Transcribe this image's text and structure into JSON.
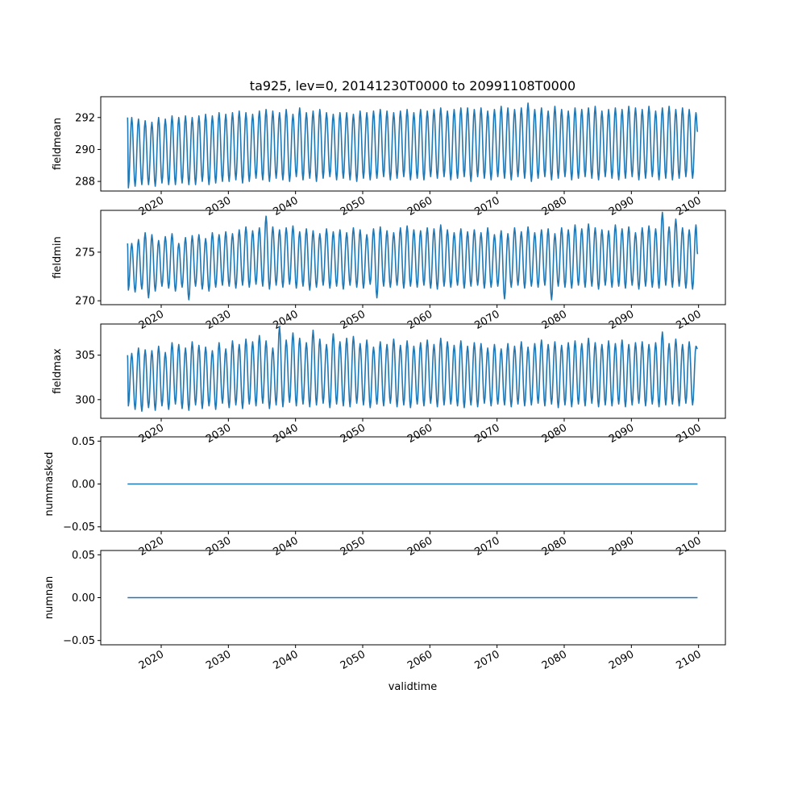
{
  "figure": {
    "title": "ta925, lev=0, 20141230T0000 to 20991108T0000",
    "xlabel": "validtime"
  },
  "chart_data": [
    {
      "type": "line",
      "ylabel": "fieldmean",
      "xlim": [
        2011.0,
        2104.0
      ],
      "ylim": [
        287.4,
        293.3
      ],
      "yticks": [
        288,
        290,
        292
      ],
      "xticks": [
        2020,
        2030,
        2040,
        2050,
        2060,
        2070,
        2080,
        2090,
        2100
      ],
      "series": [
        {
          "color": "#1f77b4",
          "start": 2015.0,
          "end": 2100.0,
          "step": 1,
          "peaks": [
            292.0,
            291.9,
            291.8,
            291.7,
            292.0,
            291.9,
            292.1,
            292.0,
            292.1,
            292.0,
            292.1,
            292.2,
            292.1,
            292.3,
            292.2,
            292.3,
            292.4,
            292.3,
            292.2,
            292.4,
            292.5,
            292.4,
            292.3,
            292.5,
            292.2,
            292.6,
            292.3,
            292.4,
            292.5,
            292.3,
            292.2,
            292.3,
            292.3,
            292.2,
            292.4,
            292.3,
            292.4,
            292.5,
            292.4,
            292.3,
            292.4,
            292.5,
            292.3,
            292.5,
            292.4,
            292.5,
            292.6,
            292.4,
            292.5,
            292.6,
            292.6,
            292.5,
            292.6,
            292.4,
            292.5,
            292.7,
            292.6,
            292.5,
            292.6,
            292.9,
            292.5,
            292.6,
            292.4,
            292.7,
            292.5,
            292.4,
            292.6,
            292.5,
            292.6,
            292.7,
            292.4,
            292.5,
            292.6,
            292.5,
            292.7,
            292.6,
            292.5,
            292.7,
            292.4,
            292.6,
            292.7,
            292.5,
            292.6,
            292.5,
            292.3
          ],
          "troughs": [
            287.6,
            287.7,
            287.8,
            287.8,
            287.7,
            287.9,
            287.8,
            287.8,
            287.9,
            287.8,
            287.8,
            288.0,
            287.8,
            287.9,
            288.0,
            288.0,
            288.1,
            287.9,
            288.0,
            288.2,
            288.1,
            288.0,
            288.2,
            288.1,
            288.0,
            288.3,
            288.1,
            288.2,
            288.0,
            288.2,
            288.3,
            288.1,
            288.2,
            288.1,
            288.0,
            288.2,
            288.1,
            288.2,
            288.3,
            288.1,
            288.2,
            288.3,
            288.1,
            288.2,
            288.1,
            288.3,
            288.2,
            288.3,
            288.1,
            288.2,
            288.3,
            288.0,
            288.3,
            288.2,
            288.1,
            288.3,
            288.2,
            288.1,
            288.3,
            288.2,
            288.0,
            288.2,
            288.3,
            288.1,
            288.2,
            288.3,
            288.1,
            288.2,
            288.3,
            288.2,
            288.1,
            288.3,
            288.2,
            288.1,
            288.2,
            288.3,
            288.1,
            288.2,
            288.3,
            288.1,
            288.2,
            288.1,
            288.2,
            288.3,
            288.2
          ],
          "first": 292.0,
          "last": 291.1
        }
      ]
    },
    {
      "type": "line",
      "ylabel": "fieldmin",
      "xlim": [
        2011.0,
        2104.0
      ],
      "ylim": [
        269.6,
        279.3
      ],
      "yticks": [
        270,
        275
      ],
      "xticks": [
        2020,
        2030,
        2040,
        2050,
        2060,
        2070,
        2080,
        2090,
        2100
      ],
      "series": [
        {
          "color": "#1f77b4",
          "start": 2015.0,
          "end": 2100.0,
          "step": 1,
          "peaks": [
            275.9,
            276.3,
            277.0,
            276.8,
            276.2,
            276.6,
            276.9,
            275.9,
            276.5,
            276.7,
            276.8,
            276.4,
            277.0,
            276.8,
            277.1,
            276.9,
            277.3,
            277.6,
            277.2,
            277.5,
            278.7,
            277.6,
            277.3,
            277.5,
            277.7,
            277.1,
            277.4,
            277.2,
            276.9,
            277.4,
            277.1,
            277.3,
            277.0,
            277.5,
            277.3,
            276.8,
            277.4,
            277.6,
            277.2,
            277.0,
            277.5,
            277.7,
            277.3,
            277.2,
            277.5,
            277.4,
            277.8,
            277.3,
            277.0,
            277.4,
            277.1,
            277.3,
            277.0,
            277.5,
            276.8,
            277.2,
            276.9,
            277.5,
            277.1,
            277.6,
            277.0,
            277.3,
            277.4,
            276.9,
            277.5,
            277.3,
            277.8,
            277.4,
            277.9,
            277.5,
            277.3,
            277.2,
            277.8,
            277.4,
            277.6,
            277.0,
            277.5,
            277.7,
            277.4,
            279.1,
            277.6,
            278.4,
            277.5,
            277.3,
            277.8
          ],
          "troughs": [
            271.1,
            270.9,
            271.2,
            270.3,
            271.0,
            271.5,
            271.3,
            271.0,
            271.4,
            270.1,
            271.5,
            271.2,
            271.0,
            271.4,
            271.6,
            271.5,
            271.3,
            271.6,
            271.4,
            271.7,
            271.5,
            271.2,
            271.6,
            271.4,
            271.7,
            271.3,
            271.5,
            271.1,
            271.4,
            271.6,
            271.3,
            271.5,
            271.2,
            271.6,
            271.4,
            271.3,
            271.7,
            270.3,
            271.5,
            271.4,
            271.6,
            271.3,
            271.5,
            271.4,
            271.6,
            271.3,
            271.2,
            271.5,
            271.4,
            271.6,
            271.3,
            271.5,
            271.6,
            271.3,
            271.4,
            271.5,
            270.2,
            271.4,
            271.6,
            271.3,
            271.5,
            271.4,
            271.6,
            270.1,
            271.5,
            271.4,
            271.3,
            271.6,
            271.4,
            271.5,
            271.2,
            271.6,
            271.4,
            271.5,
            271.3,
            271.6,
            271.2,
            271.5,
            271.4,
            271.3,
            271.6,
            271.4,
            271.5,
            271.3,
            271.2
          ],
          "first": 275.9,
          "last": 274.8
        }
      ]
    },
    {
      "type": "line",
      "ylabel": "fieldmax",
      "xlim": [
        2011.0,
        2104.0
      ],
      "ylim": [
        297.9,
        308.5
      ],
      "yticks": [
        300,
        305
      ],
      "xticks": [
        2020,
        2030,
        2040,
        2050,
        2060,
        2070,
        2080,
        2090,
        2100
      ],
      "series": [
        {
          "color": "#1f77b4",
          "start": 2015.0,
          "end": 2100.0,
          "step": 1,
          "peaks": [
            305.2,
            305.8,
            305.6,
            305.5,
            306.0,
            305.3,
            306.4,
            306.2,
            305.8,
            306.5,
            306.1,
            305.9,
            305.5,
            306.4,
            305.7,
            306.6,
            306.2,
            306.8,
            306.5,
            307.2,
            306.6,
            305.8,
            308.2,
            306.7,
            307.5,
            306.9,
            306.4,
            307.8,
            306.8,
            306.2,
            307.4,
            306.5,
            306.9,
            307.1,
            306.3,
            306.7,
            305.9,
            306.5,
            306.2,
            306.8,
            306.1,
            306.6,
            306.0,
            306.4,
            306.7,
            306.2,
            306.9,
            306.5,
            306.1,
            306.6,
            306.0,
            306.4,
            306.3,
            305.8,
            306.2,
            305.7,
            306.3,
            306.0,
            306.5,
            305.9,
            306.3,
            306.7,
            306.2,
            306.5,
            306.1,
            306.4,
            306.6,
            306.3,
            306.9,
            306.4,
            306.2,
            306.6,
            306.3,
            306.7,
            306.2,
            306.4,
            306.5,
            306.2,
            306.4,
            307.6,
            306.3,
            306.8,
            306.2,
            306.5,
            306.0
          ],
          "troughs": [
            299.3,
            298.9,
            298.7,
            299.1,
            298.8,
            299.3,
            298.9,
            299.5,
            299.0,
            298.8,
            299.4,
            299.0,
            299.3,
            298.9,
            299.6,
            299.1,
            299.4,
            299.0,
            299.5,
            299.3,
            299.6,
            299.0,
            299.4,
            299.2,
            299.7,
            299.3,
            299.5,
            299.2,
            299.4,
            299.6,
            299.1,
            299.5,
            299.3,
            299.2,
            299.6,
            299.4,
            299.1,
            299.5,
            299.3,
            299.6,
            299.2,
            299.4,
            299.1,
            299.5,
            299.3,
            299.6,
            299.2,
            299.4,
            299.5,
            299.3,
            299.1,
            299.4,
            299.2,
            299.6,
            299.3,
            299.5,
            299.4,
            299.2,
            299.5,
            299.3,
            299.4,
            299.6,
            299.3,
            299.5,
            299.1,
            299.4,
            299.2,
            299.5,
            299.3,
            299.6,
            299.2,
            299.4,
            299.3,
            299.5,
            299.2,
            299.4,
            299.6,
            299.3,
            299.5,
            299.2,
            299.4,
            299.5,
            299.3,
            299.6,
            299.4
          ],
          "first": 305.0,
          "last": 305.7
        }
      ]
    },
    {
      "type": "line",
      "ylabel": "nummasked",
      "xlim": [
        2011.0,
        2104.0
      ],
      "ylim": [
        -0.055,
        0.055
      ],
      "yticks": [
        -0.05,
        0.0,
        0.05
      ],
      "ytick_labels": [
        "−0.05",
        "0.00",
        "0.05"
      ],
      "xticks": [
        2020,
        2030,
        2040,
        2050,
        2060,
        2070,
        2080,
        2090,
        2100
      ],
      "series": [
        {
          "color": "#1f77b4",
          "x": [
            2015.0,
            2100.0
          ],
          "y": [
            0,
            0
          ]
        }
      ]
    },
    {
      "type": "line",
      "ylabel": "numnan",
      "xlim": [
        2011.0,
        2104.0
      ],
      "ylim": [
        -0.055,
        0.055
      ],
      "yticks": [
        -0.05,
        0.0,
        0.05
      ],
      "ytick_labels": [
        "−0.05",
        "0.00",
        "0.05"
      ],
      "xticks": [
        2020,
        2030,
        2040,
        2050,
        2060,
        2070,
        2080,
        2090,
        2100
      ],
      "series": [
        {
          "color": "#1f77b4",
          "x": [
            2015.0,
            2100.0
          ],
          "y": [
            0,
            0
          ]
        }
      ]
    }
  ]
}
